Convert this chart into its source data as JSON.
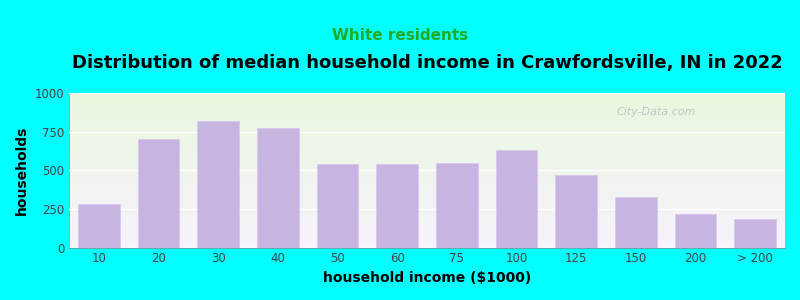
{
  "title": "Distribution of median household income in Crawfordsville, IN in 2022",
  "subtitle": "White residents",
  "xlabel": "household income ($1000)",
  "ylabel": "households",
  "background_color": "#00FFFF",
  "bar_color": "#c8b4e0",
  "bar_edge_color": "#d8c8f0",
  "categories": [
    "10",
    "20",
    "30",
    "40",
    "50",
    "60",
    "75",
    "100",
    "125",
    "150",
    "200",
    "> 200"
  ],
  "values": [
    285,
    700,
    820,
    775,
    540,
    540,
    550,
    630,
    470,
    330,
    215,
    185
  ],
  "ylim": [
    0,
    1000
  ],
  "yticks": [
    0,
    250,
    500,
    750,
    1000
  ],
  "title_fontsize": 13,
  "subtitle_fontsize": 11,
  "subtitle_color": "#22aa22",
  "watermark": "City-Data.com",
  "gradient_colors": [
    "#eef8e8",
    "#f8f4fc"
  ],
  "tick_color": "#444444",
  "axis_label_fontsize": 10,
  "tick_fontsize": 8.5
}
